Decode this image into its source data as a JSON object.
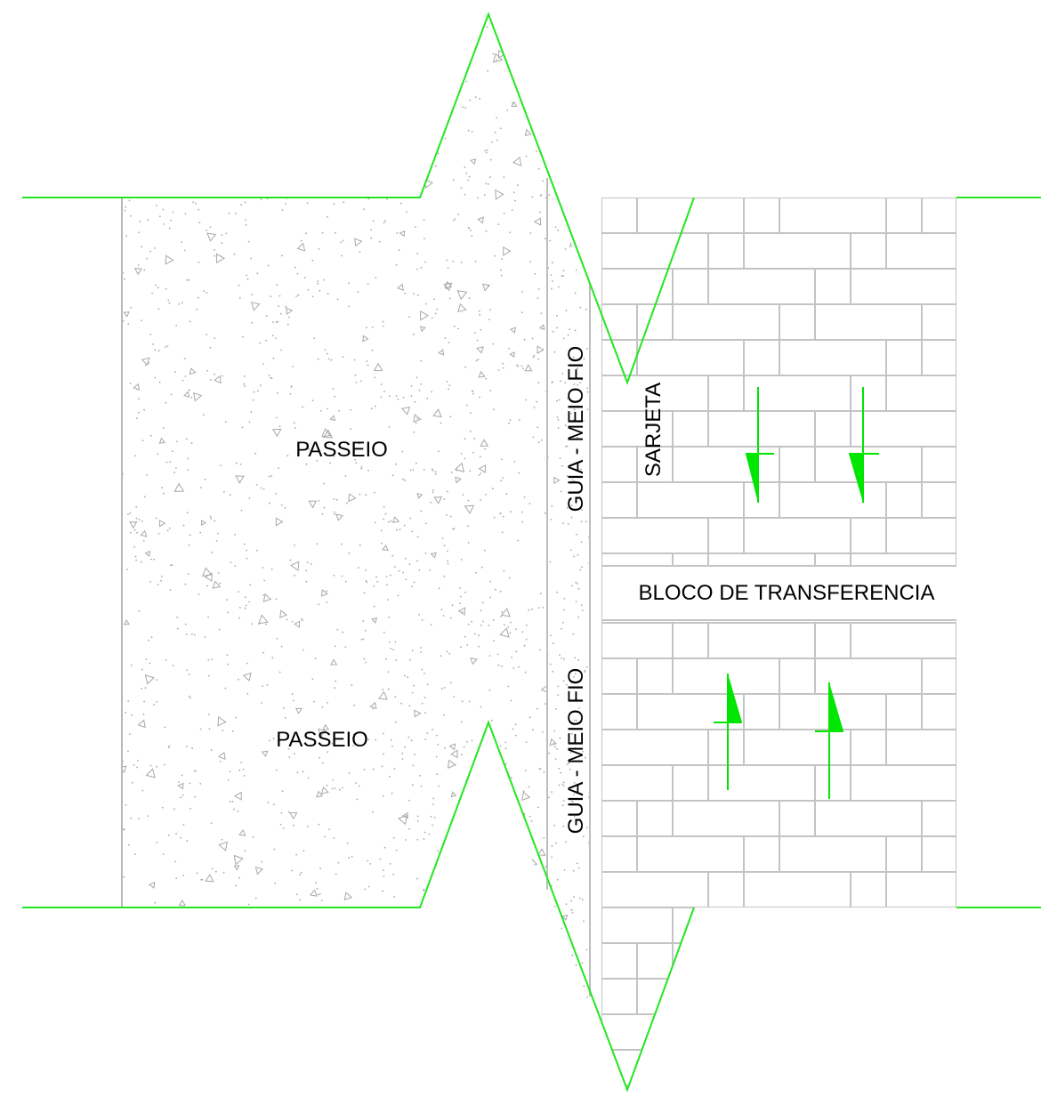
{
  "labels": {
    "passeio_top": "PASSEIO",
    "passeio_bottom": "PASSEIO",
    "guia_top": "GUIA - MEIO FIO",
    "guia_bottom": "GUIA - MEIO FIO",
    "sarjeta": "SARJETA",
    "bloco": "BLOCO DE TRANSFERENCIA"
  },
  "colors": {
    "break_line": "#22e622",
    "arrow": "#00e600",
    "paver_line": "#c4c4c4",
    "hatch": "#a8a8a8",
    "text": "#000000",
    "background": "#ffffff"
  },
  "symbols": {
    "arrows_top": "down-arrow-icon",
    "arrows_bottom": "up-arrow-icon"
  }
}
